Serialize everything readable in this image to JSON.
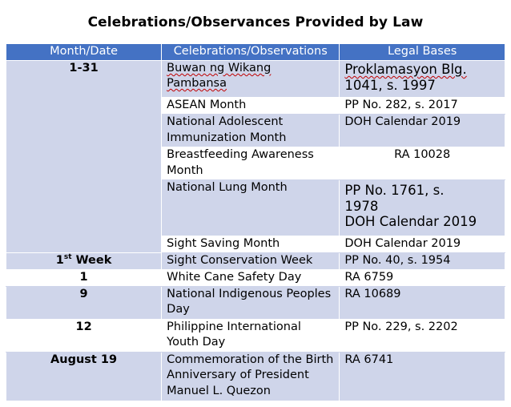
{
  "title": "Celebrations/Observances  Provided by Law",
  "header": {
    "col_month": "Month/Date",
    "col_celebration": "Celebrations/Observations",
    "col_basis": "Legal Bases"
  },
  "rows": [
    {
      "date": "1-31",
      "celebration_line1": "Buwan ng Wikang",
      "celebration_line2": "Pambansa",
      "basis_line1": "Proklamasyon Blg.",
      "basis_line2": "1041, s. 1997"
    },
    {
      "celebration": "ASEAN Month",
      "basis": "PP No. 282, s. 2017"
    },
    {
      "celebration": "National Adolescent Immunization Month",
      "basis": "DOH Calendar 2019"
    },
    {
      "celebration": "Breastfeeding Awareness Month",
      "basis": "RA 10028"
    },
    {
      "celebration": "National Lung Month",
      "basis_line1": "PP No. 1761, s.",
      "basis_line2": "1978",
      "basis_line3": "DOH Calendar 2019"
    },
    {
      "celebration": "Sight Saving Month",
      "basis": "DOH Calendar 2019"
    },
    {
      "date_main": "1",
      "date_sup": "st",
      "date_rest": " Week",
      "celebration": "Sight Conservation Week",
      "basis": "PP No. 40, s. 1954"
    },
    {
      "date": "1",
      "celebration": "White Cane Safety Day",
      "basis": "RA 6759"
    },
    {
      "date": "9",
      "celebration": "National Indigenous Peoples Day",
      "basis": "RA 10689"
    },
    {
      "date": "12",
      "celebration": "Philippine International Youth Day",
      "basis": "PP No. 229, s. 2202"
    },
    {
      "date": "August 19",
      "celebration": "Commemoration of the Birth Anniversary of President Manuel L. Quezon",
      "basis": "RA 6741"
    }
  ]
}
